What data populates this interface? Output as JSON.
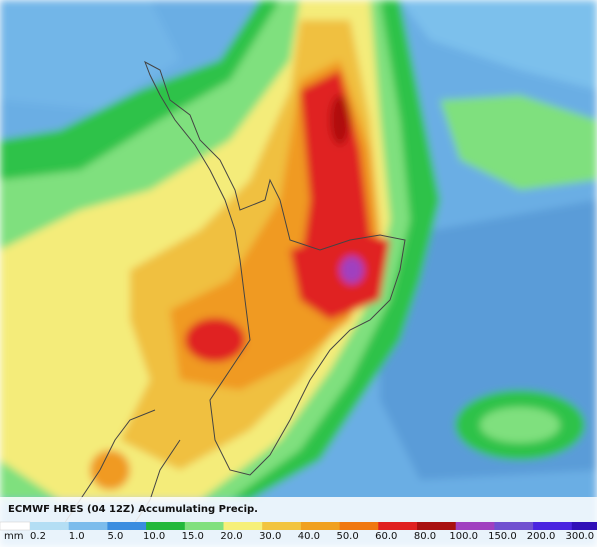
{
  "legend": {
    "title": "ECMWF HRES (04 12Z) Accumulating Precip.",
    "unit": "mm",
    "labels": [
      "0.2",
      "1.0",
      "5.0",
      "10.0",
      "15.0",
      "20.0",
      "30.0",
      "40.0",
      "50.0",
      "60.0",
      "80.0",
      "100.0",
      "150.0",
      "200.0",
      "300.0"
    ]
  }
}
